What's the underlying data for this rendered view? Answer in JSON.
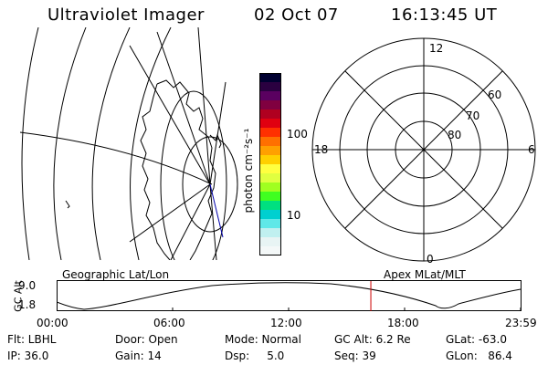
{
  "header": {
    "instrument": "Ultraviolet Imager",
    "date": "02 Oct 07",
    "time": "16:13:45 UT"
  },
  "colorbar": {
    "unit_label": "photon cm⁻²s⁻¹",
    "tick_100": "100",
    "tick_10": "10",
    "colors": [
      "#000030",
      "#2a0040",
      "#5a0060",
      "#800040",
      "#b00020",
      "#e00010",
      "#ff3000",
      "#ff7000",
      "#ffa000",
      "#ffd000",
      "#ffff40",
      "#e0ff40",
      "#a0ff20",
      "#40ff20",
      "#00e080",
      "#00d0d0",
      "#60e8e8",
      "#c0f0f0",
      "#e8f4f4",
      "#f4f8f8"
    ]
  },
  "polar": {
    "mlt_12": "12",
    "mlt_18": "18",
    "mlt_6": "6",
    "mlt_0": "0",
    "lat_60": "60",
    "lat_70": "70",
    "lat_80": "80"
  },
  "timeline": {
    "left_title": "Geographic Lat/Lon",
    "right_title": "Apex MLat/MLT",
    "y_label": "GC Alt",
    "y_max": "9.0",
    "y_min": "1.8",
    "times": [
      "00:00",
      "06:00",
      "12:00",
      "18:00",
      "23:59"
    ],
    "current_marker_hours": 16.23
  },
  "footer": {
    "filter": "Flt: LBHL",
    "door": "Door: Open",
    "mode": "Mode: Normal",
    "gc_alt": "GC Alt: 6.2 Re",
    "glat": "GLat: -63.0",
    "ip": "IP: 36.0",
    "gain": "Gain: 14",
    "dsp": "Dsp:     5.0",
    "seq": "Seq: 39",
    "glon": "GLon:   86.4"
  }
}
